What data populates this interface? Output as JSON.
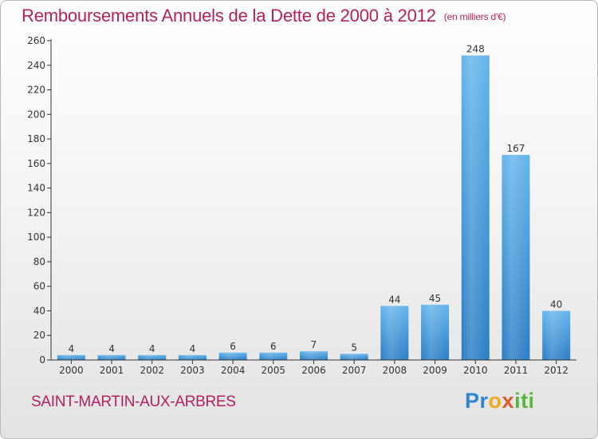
{
  "title": "Remboursements Annuels de la Dette de 2000 à 2012",
  "subtitle": "(en milliers d'€)",
  "commune": "SAINT-MARTIN-AUX-ARBRES",
  "logo": {
    "p1": "Pr",
    "p2": "o",
    "p3": "x",
    "p4": "iti"
  },
  "colors": {
    "title": "#b5205c",
    "bar_top": "#64b4ec",
    "bar_bottom": "#2a7dc4",
    "axis": "#333333",
    "grid": "#d8d8d8"
  },
  "chart_data": {
    "type": "bar",
    "categories": [
      "2000",
      "2001",
      "2002",
      "2003",
      "2004",
      "2005",
      "2006",
      "2007",
      "2008",
      "2009",
      "2010",
      "2011",
      "2012"
    ],
    "values": [
      4,
      4,
      4,
      4,
      6,
      6,
      7,
      5,
      44,
      45,
      248,
      167,
      40
    ],
    "yticks": [
      0,
      20,
      40,
      60,
      80,
      100,
      120,
      140,
      160,
      180,
      200,
      220,
      240,
      260
    ],
    "ylim": [
      0,
      260
    ],
    "grid": false,
    "legend": "none"
  }
}
